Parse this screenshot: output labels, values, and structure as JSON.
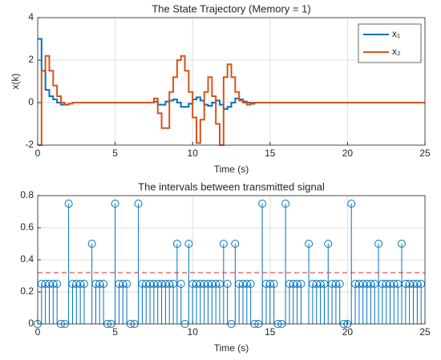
{
  "chart_data": [
    {
      "type": "line",
      "step": true,
      "title": "The State Trajectory (Memory = 1)",
      "xlabel": "Time (s)",
      "ylabel": "x(k)",
      "x": [
        0,
        0.25,
        0.5,
        0.75,
        1,
        1.25,
        1.5,
        1.75,
        2,
        2.25,
        2.5,
        2.75,
        3,
        3.25,
        3.5,
        3.75,
        4,
        4.25,
        4.5,
        4.75,
        5,
        5.25,
        5.5,
        5.75,
        6,
        6.25,
        6.5,
        6.75,
        7,
        7.25,
        7.5,
        7.75,
        8,
        8.25,
        8.5,
        8.75,
        9,
        9.25,
        9.5,
        9.75,
        10,
        10.25,
        10.5,
        10.75,
        11,
        11.25,
        11.5,
        11.75,
        12,
        12.25,
        12.5,
        12.75,
        13,
        13.25,
        13.5,
        13.75,
        14,
        14.25,
        14.5,
        14.75,
        15,
        25
      ],
      "series": [
        {
          "name": "x₁",
          "color": "#0072bd",
          "values": [
            3,
            1.5,
            0.6,
            0.3,
            0.15,
            0,
            -0.1,
            -0.1,
            -0.05,
            0,
            0,
            0,
            0,
            0,
            0,
            0,
            0,
            0,
            0,
            0,
            0,
            0,
            0,
            0,
            0,
            0,
            0,
            0,
            0,
            0,
            0.05,
            -0.1,
            -0.1,
            0.05,
            0.1,
            0.15,
            0,
            -0.2,
            -0.2,
            -0.05,
            0.15,
            0.25,
            0.1,
            -0.1,
            -0.15,
            0,
            0.1,
            -0.1,
            -0.3,
            -0.2,
            0,
            0.2,
            0.15,
            0.05,
            0,
            -0.05,
            0,
            0,
            0,
            0,
            0,
            0
          ]
        },
        {
          "name": "x₂",
          "color": "#d95319",
          "values": [
            -2,
            1.5,
            2.2,
            1.5,
            0.8,
            0.3,
            0,
            -0.1,
            -0.05,
            0,
            0,
            0,
            0,
            0,
            0,
            0,
            0,
            0,
            0,
            0,
            0,
            0,
            0,
            0,
            0,
            0,
            0,
            0,
            0,
            0,
            0.2,
            -0.5,
            -1.2,
            -1.2,
            0.5,
            1.2,
            2.0,
            2.2,
            1.5,
            0.5,
            -0.7,
            -1.9,
            -0.8,
            0.5,
            1.2,
            0.3,
            -1.0,
            -2.0,
            1.2,
            1.8,
            1.2,
            0.5,
            0.1,
            0,
            -0.1,
            0,
            0,
            0,
            0,
            0,
            0,
            0
          ]
        }
      ],
      "xlim": [
        0,
        25
      ],
      "xticks": [
        0,
        5,
        10,
        15,
        20,
        25
      ],
      "ylim": [
        -2,
        4
      ],
      "yticks": [
        -2,
        0,
        2,
        4
      ],
      "grid": true,
      "legend": "upper right"
    },
    {
      "type": "stem",
      "title": "The intervals between transmitted signal",
      "xlabel": "Time (s)",
      "color": "#0072bd",
      "x": [
        0,
        0.25,
        0.5,
        0.75,
        1,
        1.25,
        1.5,
        1.75,
        2,
        2.25,
        2.5,
        2.75,
        3,
        3.5,
        3.75,
        4,
        4.25,
        4.5,
        4.75,
        5,
        5.25,
        5.5,
        5.75,
        6,
        6.25,
        6.5,
        6.75,
        7,
        7.25,
        7.5,
        7.75,
        8,
        8.25,
        8.5,
        8.75,
        9,
        9.25,
        9.5,
        9.75,
        10,
        10.25,
        10.5,
        10.75,
        11,
        11.25,
        11.5,
        11.75,
        12,
        12.25,
        12.5,
        12.75,
        13,
        13.25,
        13.5,
        13.75,
        14,
        14.25,
        14.5,
        14.75,
        15,
        15.25,
        15.5,
        15.75,
        16,
        16.25,
        16.5,
        16.75,
        17,
        17.5,
        17.75,
        18,
        18.25,
        18.5,
        18.75,
        19,
        19.25,
        19.5,
        19.75,
        20,
        20.25,
        20.5,
        20.75,
        21,
        21.25,
        21.5,
        21.75,
        22,
        22.25,
        22.5,
        22.75,
        23,
        23.25,
        23.5,
        23.75,
        24,
        24.25,
        24.5,
        24.75
      ],
      "values": [
        0,
        0.25,
        0.25,
        0.25,
        0.25,
        0.25,
        0,
        0,
        0.75,
        0.25,
        0.25,
        0.25,
        0.25,
        0.5,
        0.25,
        0.25,
        0.25,
        0,
        0,
        0.75,
        0.25,
        0.25,
        0.25,
        0,
        0,
        0.75,
        0.25,
        0.25,
        0.25,
        0.25,
        0.25,
        0.25,
        0.25,
        0.25,
        0.25,
        0.5,
        0.25,
        0,
        0.5,
        0.25,
        0.25,
        0.25,
        0.25,
        0.25,
        0.25,
        0.25,
        0.25,
        0.5,
        0.25,
        0,
        0.5,
        0.25,
        0.25,
        0.25,
        0.25,
        0,
        0,
        0.75,
        0.25,
        0.25,
        0.25,
        0,
        0,
        0.75,
        0.25,
        0.25,
        0.25,
        0.25,
        0.5,
        0.25,
        0.25,
        0.25,
        0.25,
        0.5,
        0.25,
        0.25,
        0.25,
        0,
        0,
        0.75,
        0.25,
        0.25,
        0.25,
        0.25,
        0.25,
        0.25,
        0.5,
        0.25,
        0.25,
        0.25,
        0.25,
        0.25,
        0.5,
        0.25,
        0.25,
        0.25,
        0.25,
        0.25
      ],
      "reference_line": {
        "value": 0.32,
        "color": "#e8201f"
      },
      "xlim": [
        0,
        25
      ],
      "xticks": [
        0,
        5,
        10,
        15,
        20,
        25
      ],
      "ylim": [
        0,
        0.8
      ],
      "yticks": [
        0,
        0.2,
        0.4,
        0.6,
        0.8
      ],
      "grid": true
    }
  ]
}
